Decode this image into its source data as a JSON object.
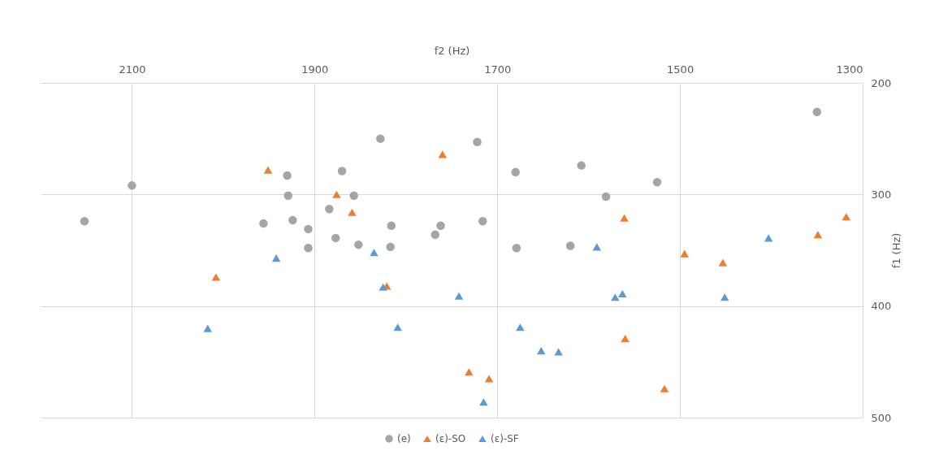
{
  "chart_data": {
    "type": "scatter",
    "xlabel": "f2 (Hz)",
    "ylabel": "f1 (Hz)",
    "xlim": [
      2200,
      1300
    ],
    "xticks": [
      2100,
      1900,
      1700,
      1500,
      1300
    ],
    "ylim": [
      500,
      200
    ],
    "yticks": [
      200,
      300,
      400,
      500
    ],
    "grid": true,
    "legend": "bottom",
    "series": [
      {
        "name": "(e)",
        "color": "#a5a5a5",
        "marker": "circle",
        "x": [
          2152,
          2100,
          1956,
          1930,
          1929,
          1924,
          1907,
          1907,
          1884,
          1877,
          1870,
          1857,
          1828,
          1852,
          1816,
          1817,
          1762,
          1768,
          1722,
          1716,
          1680,
          1679,
          1608,
          1581,
          1620,
          1525,
          1350
        ],
        "values": [
          324,
          292,
          326,
          283,
          301,
          323,
          331,
          348,
          313,
          339,
          279,
          301,
          250,
          345,
          328,
          347,
          328,
          336,
          253,
          324,
          280,
          348,
          274,
          302,
          346,
          289,
          226
        ]
      },
      {
        "name": "(ε)-SO",
        "color": "#ed7d31",
        "marker": "triangle",
        "x": [
          1951,
          2008,
          1876,
          1859,
          1760,
          1821,
          1731,
          1709,
          1561,
          1560,
          1517,
          1495,
          1453,
          1349,
          1318
        ],
        "values": [
          278,
          374,
          300,
          316,
          264,
          382,
          459,
          465,
          321,
          429,
          474,
          353,
          361,
          336,
          320
        ]
      },
      {
        "name": "(ε)-SF",
        "color": "#5b9bd5",
        "marker": "triangle",
        "x": [
          1942,
          2017,
          1835,
          1825,
          1742,
          1809,
          1715,
          1675,
          1652,
          1633,
          1591,
          1571,
          1563,
          1451,
          1403
        ],
        "values": [
          357,
          420,
          352,
          383,
          391,
          419,
          486,
          419,
          440,
          441,
          347,
          392,
          389,
          392,
          339
        ]
      }
    ]
  }
}
